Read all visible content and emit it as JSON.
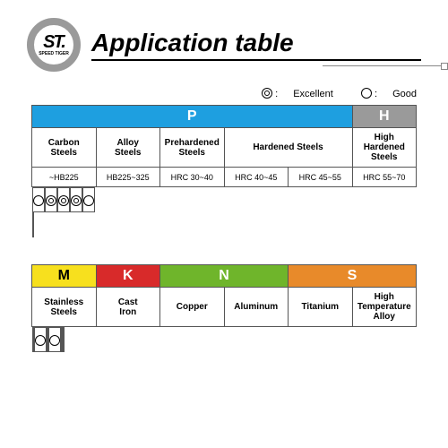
{
  "logo": {
    "main": "ST.",
    "sub": "SPEED TIGER"
  },
  "title": "Application table",
  "legend": {
    "excellent": "Excellent",
    "good": "Good"
  },
  "colors": {
    "P": "#1e9fe0",
    "H": "#9a9a9a",
    "M": "#f7e01e",
    "K": "#d82a2a",
    "N": "#6fb52b",
    "S": "#e88a2a",
    "M_text": "#000000",
    "default_text": "#ffffff",
    "border": "#555555"
  },
  "table1": {
    "groups": [
      {
        "code": "P",
        "span": 5
      },
      {
        "code": "H",
        "span": 1
      }
    ],
    "materials": [
      {
        "name": "Carbon\nSteels",
        "span": 1
      },
      {
        "name": "Alloy\nSteels",
        "span": 1
      },
      {
        "name": "Prehardened\nSteels",
        "span": 1
      },
      {
        "name": "Hardened Steels",
        "span": 2
      },
      {
        "name": "High Hardened\nSteels",
        "span": 1
      }
    ],
    "ranges": [
      "~HB225",
      "HB225~325",
      "HRC 30~40",
      "HRC 40~45",
      "HRC 45~55",
      "HRC 55~70"
    ],
    "ratings": [
      "good",
      "excellent",
      "excellent",
      "excellent",
      "good",
      ""
    ]
  },
  "table2": {
    "groups": [
      {
        "code": "M",
        "span": 1
      },
      {
        "code": "K",
        "span": 1
      },
      {
        "code": "N",
        "span": 2
      },
      {
        "code": "S",
        "span": 2
      }
    ],
    "materials": [
      {
        "name": "Stainless\nSteels"
      },
      {
        "name": "Cast\nIron"
      },
      {
        "name": "Copper"
      },
      {
        "name": "Aluminum"
      },
      {
        "name": "Titanium"
      },
      {
        "name": "High Temperature\nAlloy"
      }
    ],
    "ratings": [
      "",
      "good",
      "",
      "good",
      "",
      ""
    ]
  }
}
